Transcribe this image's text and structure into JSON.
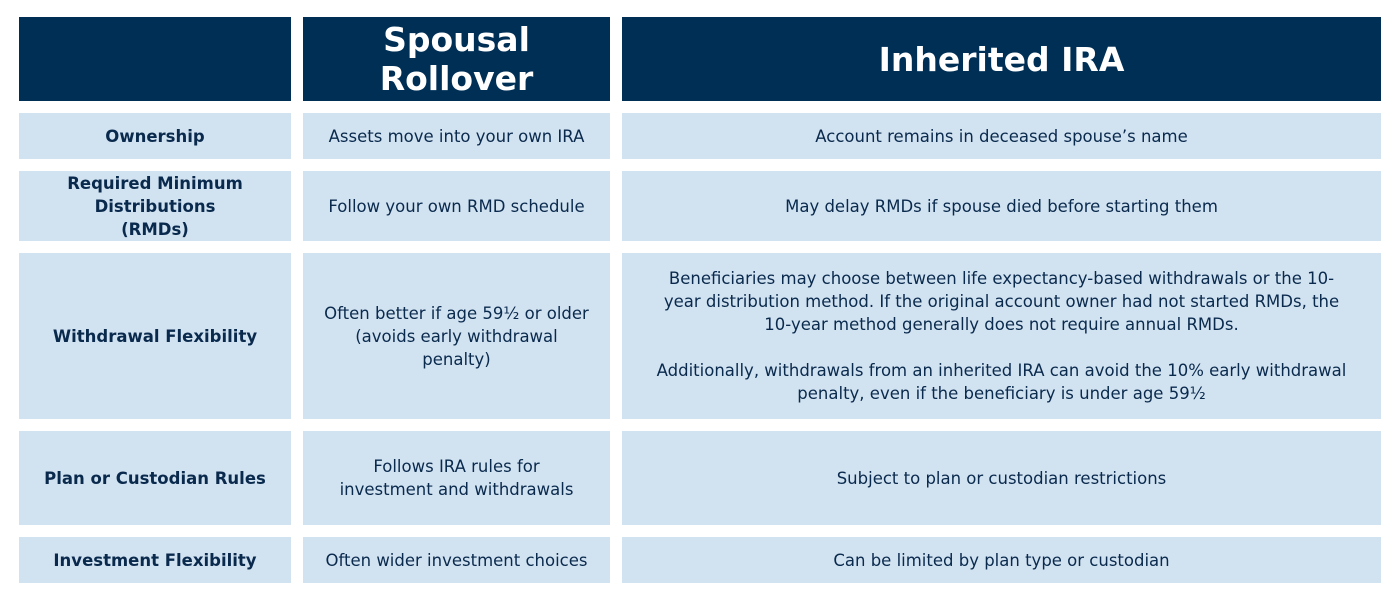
{
  "colors": {
    "header_bg": "#002f56",
    "cell_bg": "#d1e2f1",
    "text": "#0a2a4d"
  },
  "header": {
    "corner": "",
    "col2": "Spousal Rollover",
    "col3": "Inherited IRA"
  },
  "rows": [
    {
      "label": "Ownership",
      "spousal": "Assets move into your own IRA",
      "inherited": [
        "Account remains in deceased spouse’s name"
      ]
    },
    {
      "label": "Required Minimum Distributions (RMDs)",
      "spousal": "Follow your own RMD schedule",
      "inherited": [
        "May delay RMDs if spouse died before starting them"
      ]
    },
    {
      "label": "Withdrawal Flexibility",
      "spousal": "Often better if age 59½ or older (avoids early withdrawal penalty)",
      "inherited": [
        "Beneficiaries may choose between life expectancy-based withdrawals or the 10-year distribution method. If the original account owner had not started RMDs, the 10-year method generally does not require annual RMDs.",
        "Additionally, withdrawals from an inherited IRA can avoid the 10% early withdrawal penalty, even if the beneficiary is under age 59½"
      ]
    },
    {
      "label": "Plan or Custodian Rules",
      "spousal": "Follows IRA rules for investment and withdrawals",
      "inherited": [
        "Subject to plan or custodian restrictions"
      ]
    },
    {
      "label": "Investment Flexibility",
      "spousal": "Often wider investment choices",
      "inherited": [
        "Can be limited by plan type or custodian"
      ]
    }
  ]
}
